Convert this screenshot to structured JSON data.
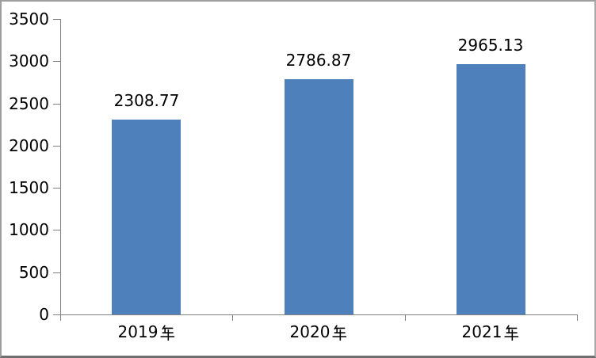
{
  "chart_data": {
    "type": "bar",
    "title": "",
    "xlabel": "",
    "ylabel": "",
    "categories": [
      "2019年",
      "2020年",
      "2021年"
    ],
    "categories_display": [
      "2019",
      "2020",
      "2021"
    ],
    "category_suffix": "年",
    "values": [
      2308.77,
      2786.87,
      2965.13
    ],
    "data_labels": [
      "2308.77",
      "2786.87",
      "2965.13"
    ],
    "ylim": [
      0,
      3500
    ],
    "y_ticks": [
      0,
      500,
      1000,
      1500,
      2000,
      2500,
      3000,
      3500
    ],
    "grid": false,
    "legend": "none",
    "colors": {
      "bar_fill": "#4E80BC",
      "axis_line": "#808080",
      "text": "#000000",
      "plot_background": "#FFFFFF"
    }
  }
}
